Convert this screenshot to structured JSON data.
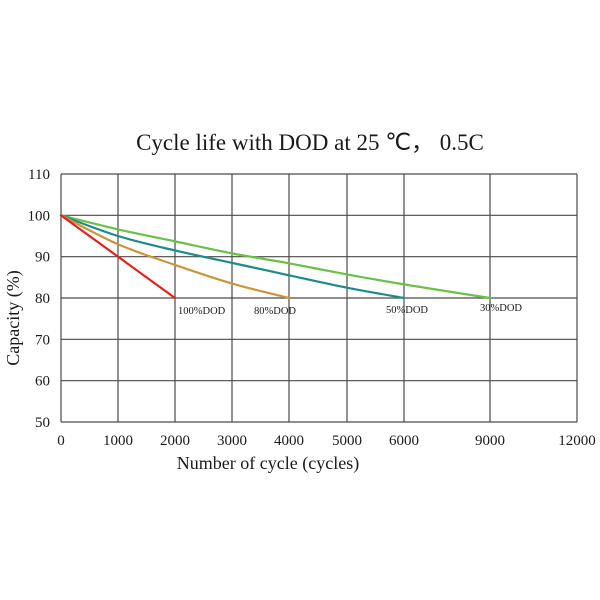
{
  "chart_data": {
    "type": "line",
    "title": "Cycle life with  DOD  at 25 ℃， 0.5C",
    "xlabel": "Number of cycle (cycles)",
    "ylabel": "Capacity (%)",
    "x_ticks": [
      0,
      1000,
      2000,
      3000,
      4000,
      5000,
      6000,
      9000,
      12000
    ],
    "x_tick_labels": [
      "0",
      "1000",
      "2000",
      "3000",
      "4000",
      "5000",
      "6000",
      "9000",
      "12000"
    ],
    "y_ticks": [
      50,
      60,
      70,
      80,
      90,
      100,
      110
    ],
    "y_tick_labels": [
      "50",
      "60",
      "70",
      "80",
      "90",
      "100",
      "110"
    ],
    "xlim": [
      0,
      12000
    ],
    "ylim": [
      50,
      110
    ],
    "x_scale_note": "non-uniform: equal spacing up to 6000, then 9000 and 12000 at 1.5x spacing",
    "grid": true,
    "series": [
      {
        "name": "100%DOD",
        "color": "#e2231a",
        "x": [
          0,
          1000,
          2000
        ],
        "y": [
          100,
          90,
          80
        ]
      },
      {
        "name": "80%DOD",
        "color": "#c8963c",
        "x": [
          0,
          1000,
          2000,
          3000,
          4000
        ],
        "y": [
          100,
          93,
          88,
          83.5,
          80
        ]
      },
      {
        "name": "50%DOD",
        "color": "#1f8a8c",
        "x": [
          0,
          1000,
          2000,
          3000,
          4000,
          5000,
          6000
        ],
        "y": [
          100,
          95,
          91.5,
          88.5,
          85.5,
          82.5,
          80
        ]
      },
      {
        "name": "30%DOD",
        "color": "#6cc04a",
        "x": [
          0,
          1000,
          2000,
          3000,
          4000,
          5000,
          6000,
          9000
        ],
        "y": [
          100,
          96.6,
          93.7,
          90.8,
          88.4,
          85.7,
          83.3,
          80
        ]
      }
    ],
    "annotations": [
      "100%DOD",
      "80%DOD",
      "50%DOD",
      "30%DOD"
    ]
  }
}
